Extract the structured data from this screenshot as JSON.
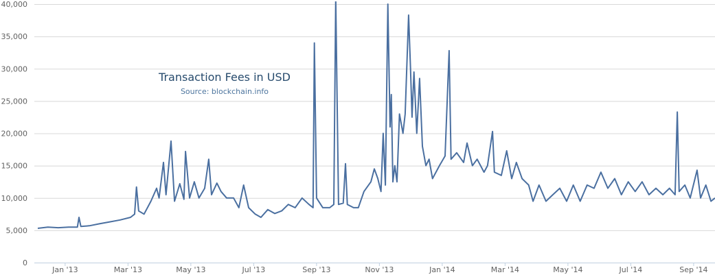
{
  "chart_data": {
    "type": "line",
    "title": "Transaction Fees in USD",
    "subtitle": "Source: blockchain.info",
    "color": "#4a6fa0",
    "grid": true,
    "xlim": [
      0.02,
      21.68
    ],
    "xticks": [
      {
        "value": 1,
        "label": "Jan '13"
      },
      {
        "value": 3,
        "label": "Mar '13"
      },
      {
        "value": 5,
        "label": "May '13"
      },
      {
        "value": 7,
        "label": "Jul '13"
      },
      {
        "value": 9,
        "label": "Sep '13"
      },
      {
        "value": 11,
        "label": "Nov '13"
      },
      {
        "value": 13,
        "label": "Jan '14"
      },
      {
        "value": 15,
        "label": "Mar '14"
      },
      {
        "value": 17,
        "label": "May '14"
      },
      {
        "value": 19,
        "label": "Jul '14"
      },
      {
        "value": 21,
        "label": "Sep '14"
      }
    ],
    "ylim": [
      0,
      40000
    ],
    "yticks": [
      0,
      {
        "value": 5000,
        "label": "5,000"
      },
      {
        "value": 10000,
        "label": "10,000"
      },
      {
        "value": 15000,
        "label": "15,000"
      },
      {
        "value": 20000,
        "label": "20,000"
      },
      {
        "value": 25000,
        "label": "25,000"
      },
      {
        "value": 30000,
        "label": "30,000"
      },
      {
        "value": 35000,
        "label": "35,000"
      },
      {
        "value": 40000,
        "label": "40,000"
      }
    ],
    "x": [
      0.13,
      0.45,
      0.78,
      1.11,
      1.39,
      1.44,
      1.5,
      1.77,
      2.09,
      2.42,
      2.75,
      3.08,
      3.21,
      3.27,
      3.34,
      3.51,
      3.73,
      3.91,
      3.99,
      4.13,
      4.21,
      4.37,
      4.48,
      4.65,
      4.78,
      4.83,
      4.96,
      5.11,
      5.26,
      5.44,
      5.57,
      5.66,
      5.83,
      5.96,
      6.14,
      6.36,
      6.53,
      6.68,
      6.84,
      7.05,
      7.23,
      7.45,
      7.67,
      7.89,
      8.1,
      8.32,
      8.54,
      8.76,
      8.89,
      8.93,
      9.0,
      9.2,
      9.42,
      9.55,
      9.61,
      9.7,
      9.85,
      9.92,
      9.98,
      10.18,
      10.33,
      10.51,
      10.73,
      10.84,
      10.95,
      11.05,
      11.12,
      11.19,
      11.27,
      11.34,
      11.38,
      11.43,
      11.49,
      11.56,
      11.64,
      11.75,
      11.82,
      11.93,
      11.99,
      12.04,
      12.1,
      12.19,
      12.28,
      12.37,
      12.48,
      12.58,
      12.69,
      12.91,
      13.09,
      13.22,
      13.28,
      13.46,
      13.68,
      13.79,
      13.96,
      14.11,
      14.33,
      14.44,
      14.6,
      14.66,
      14.88,
      15.05,
      15.21,
      15.36,
      15.54,
      15.75,
      15.89,
      16.08,
      16.3,
      16.52,
      16.74,
      16.96,
      17.17,
      17.39,
      17.61,
      17.83,
      18.05,
      18.27,
      18.49,
      18.7,
      18.92,
      19.14,
      19.36,
      19.58,
      19.8,
      20.02,
      20.23,
      20.41,
      20.48,
      20.54,
      20.72,
      20.89,
      21.11,
      21.22,
      21.39,
      21.55,
      21.68
    ],
    "values": [
      5300,
      5500,
      5400,
      5500,
      5500,
      7000,
      5600,
      5700,
      6000,
      6300,
      6600,
      7000,
      7500,
      11700,
      8000,
      7500,
      9500,
      11500,
      10000,
      15500,
      10500,
      18800,
      9500,
      12200,
      9800,
      17200,
      10000,
      12500,
      10000,
      11500,
      16000,
      10500,
      12300,
      11000,
      10000,
      10000,
      8500,
      12000,
      8500,
      7500,
      7000,
      8200,
      7600,
      8000,
      9000,
      8500,
      10000,
      9000,
      8500,
      34000,
      10000,
      8500,
      8500,
      9000,
      41000,
      9000,
      9200,
      15300,
      9000,
      8500,
      8500,
      11000,
      12500,
      14500,
      13000,
      11000,
      20000,
      12000,
      40000,
      21000,
      26000,
      12500,
      15000,
      12500,
      23000,
      20000,
      23000,
      38300,
      30000,
      22500,
      29500,
      20000,
      28500,
      18000,
      15000,
      16000,
      13000,
      15000,
      16500,
      32800,
      16000,
      17000,
      15500,
      18500,
      15000,
      16000,
      14000,
      15000,
      20300,
      14000,
      13500,
      17300,
      13000,
      15500,
      13000,
      12000,
      9500,
      12000,
      9500,
      10500,
      11500,
      9500,
      12000,
      9500,
      12000,
      11500,
      14000,
      11500,
      13000,
      10500,
      12500,
      11000,
      12500,
      10500,
      11500,
      10500,
      11500,
      10500,
      23300,
      11000,
      12000,
      10000,
      14300,
      10000,
      12000,
      9500,
      10000
    ]
  }
}
